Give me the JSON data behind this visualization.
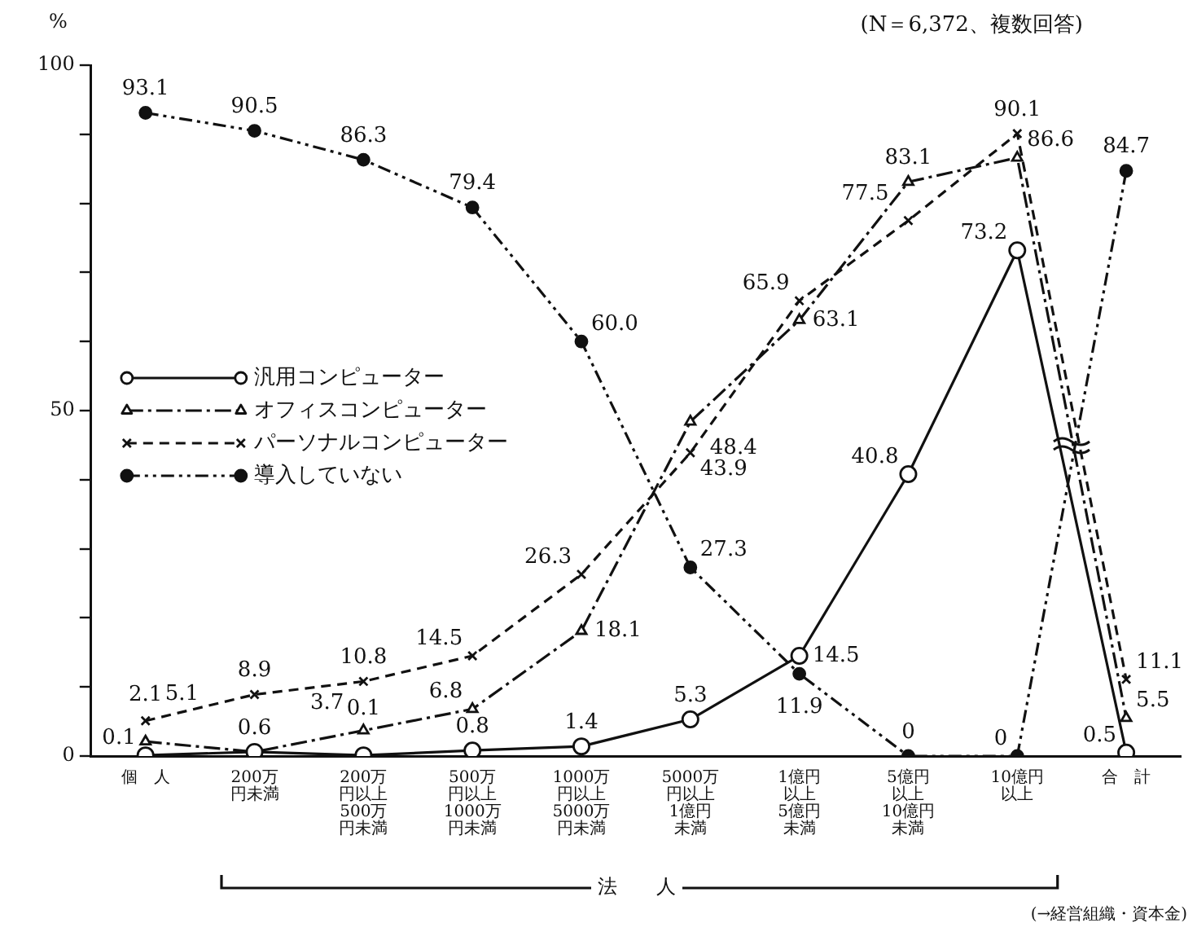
{
  "chart_data": {
    "type": "line",
    "subtitle": "(N＝6,372、複数回答)",
    "ylabel": "%",
    "categories": [
      "個　人",
      "200万円未満",
      "200万円以上500万円未満",
      "500万円以上1000万円未満",
      "1000万円以上5000万円未満",
      "5000万円以上1億円未満",
      "1億円以上5億円未満",
      "5億円以上10億円未満",
      "10億円以上",
      "合　計"
    ],
    "series": [
      {
        "name": "汎用コンピューター",
        "color": "#111111",
        "marker": "circle",
        "line_style": "solid",
        "values": [
          0.1,
          0.6,
          0.1,
          0.8,
          1.4,
          5.3,
          14.5,
          40.8,
          73.2,
          0.5
        ],
        "value_labels": [
          "0.1",
          null,
          "0.1",
          "0.8",
          "1.4",
          "5.3",
          "14.5",
          "40.8",
          "73.2",
          "0.5"
        ]
      },
      {
        "name": "オフィスコンピューター",
        "color": "#111111",
        "marker": "triangle",
        "line_style": "dashdot",
        "values": [
          2.1,
          0.6,
          3.7,
          6.8,
          18.1,
          48.4,
          63.1,
          83.1,
          86.6,
          5.5
        ],
        "value_labels": [
          "2.1",
          "0.6",
          "3.7",
          "6.8",
          "18.1",
          "48.4",
          "63.1",
          "83.1",
          "86.6",
          "5.5"
        ]
      },
      {
        "name": "パーソナルコンピューター",
        "color": "#111111",
        "marker": "cross",
        "line_style": "dashed",
        "values": [
          5.1,
          8.9,
          10.8,
          14.5,
          26.3,
          43.9,
          65.9,
          77.5,
          90.1,
          11.1
        ],
        "value_labels": [
          "5.1",
          "8.9",
          "10.8",
          "14.5",
          "26.3",
          "43.9",
          "65.9",
          "77.5",
          "90.1",
          "11.1"
        ]
      },
      {
        "name": "導入していない",
        "color": "#111111",
        "marker": "circle_filled",
        "line_style": "dashdotdot",
        "values": [
          93.1,
          90.5,
          86.3,
          79.4,
          60.0,
          27.3,
          11.9,
          0,
          0,
          84.7
        ],
        "value_labels": [
          "93.1",
          "90.5",
          "86.3",
          "79.4",
          "60.0",
          "27.3",
          "11.9",
          "0",
          "0",
          "84.7"
        ]
      }
    ],
    "ylim": [
      0,
      100
    ],
    "yticks": [
      0,
      {
        "value": 10,
        "label": null
      },
      {
        "value": 20,
        "label": null
      },
      {
        "value": 30,
        "label": null
      },
      {
        "value": 40,
        "label": null
      },
      50,
      {
        "value": 60,
        "label": null
      },
      {
        "value": 70,
        "label": null
      },
      {
        "value": 80,
        "label": null
      },
      {
        "value": 90,
        "label": null
      },
      100
    ],
    "grid": false,
    "legend": "left",
    "annotations": [
      "法　　人",
      "(→経営組織・資本金)"
    ]
  }
}
